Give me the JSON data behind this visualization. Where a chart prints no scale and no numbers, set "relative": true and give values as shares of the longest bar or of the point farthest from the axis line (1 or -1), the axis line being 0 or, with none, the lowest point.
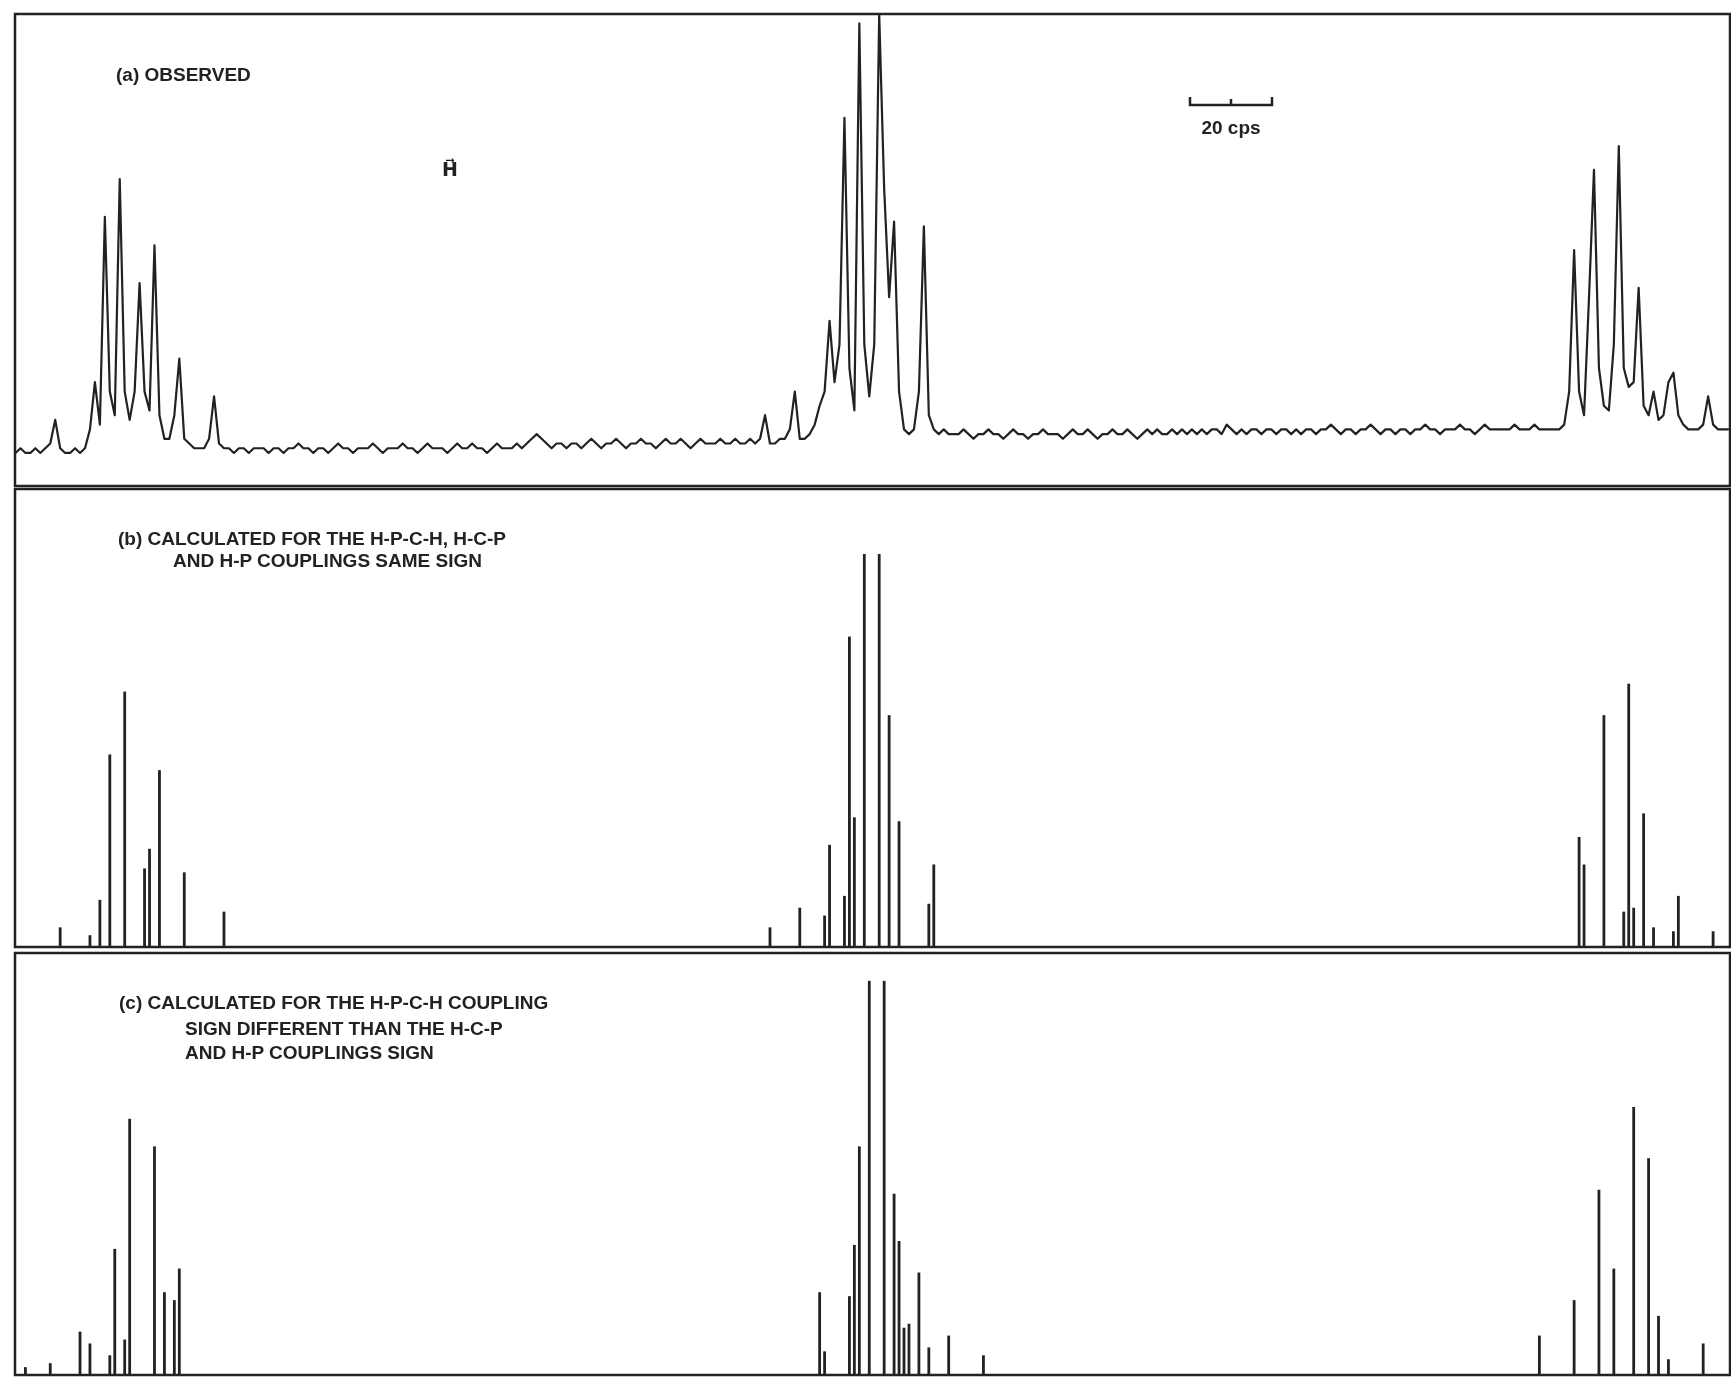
{
  "chart_data": [
    {
      "type": "line",
      "title": "(a) OBSERVED",
      "relative": true,
      "color": "#222222",
      "annotations": [
        "H⃗",
        "20 cps"
      ],
      "categories": [
        null,
        null,
        null,
        null,
        null,
        null,
        null,
        null,
        null,
        null,
        null,
        null,
        null,
        null,
        null,
        null,
        null,
        null,
        null,
        null,
        null,
        null,
        null,
        null,
        null,
        null,
        null,
        null,
        null,
        null,
        null,
        null,
        null,
        null,
        null,
        null,
        null,
        null,
        null,
        null,
        null,
        null,
        null,
        null,
        null,
        null,
        null,
        null,
        null,
        null,
        null,
        null,
        null,
        null,
        null,
        null,
        null,
        null,
        null,
        null,
        null,
        null,
        null,
        null,
        null,
        null,
        null,
        null,
        null,
        null,
        null,
        null,
        null,
        null,
        null,
        null,
        null,
        null,
        null,
        null,
        null,
        null,
        null,
        null,
        null,
        null,
        null,
        null,
        null,
        null,
        null,
        null,
        null,
        null,
        null,
        null,
        null,
        null,
        null,
        null,
        null,
        null,
        null,
        null,
        null,
        null,
        null,
        null,
        null,
        null,
        null,
        null,
        null,
        null,
        null,
        null,
        null,
        null,
        null,
        null,
        null,
        null,
        null,
        null,
        null,
        null,
        null,
        null,
        null,
        null,
        null,
        null,
        null,
        null,
        null,
        null,
        null,
        null,
        null,
        null,
        null,
        null,
        null,
        null,
        null,
        null,
        null,
        null,
        null,
        null,
        null,
        null,
        null,
        null,
        null,
        null,
        null,
        null,
        null,
        null,
        null,
        null,
        null,
        null,
        null,
        null,
        null,
        null,
        null,
        null,
        null,
        null,
        null,
        null,
        null,
        null,
        null,
        null,
        null,
        null,
        null,
        null,
        null,
        null,
        null,
        null,
        null,
        null,
        null,
        null,
        null,
        null,
        null,
        null,
        null,
        null,
        null,
        null,
        null,
        null,
        null,
        null,
        null,
        null,
        null,
        null,
        null,
        null,
        null,
        null,
        null,
        null,
        null,
        null,
        null,
        null,
        null,
        null,
        null,
        null,
        null,
        null,
        null,
        null,
        null,
        null,
        null,
        null,
        null,
        null,
        null,
        null,
        null,
        null,
        null,
        null,
        null,
        null,
        null,
        null,
        null,
        null,
        null,
        null,
        null,
        null,
        null,
        null,
        null,
        null,
        null,
        null,
        null,
        null,
        null,
        null,
        null,
        null,
        null,
        null,
        null,
        null,
        null,
        null,
        null,
        null,
        null,
        null,
        null,
        null,
        null,
        null,
        null,
        null,
        null,
        null,
        null,
        null,
        null,
        null,
        null,
        null,
        null,
        null,
        null,
        null,
        null,
        null,
        null,
        null,
        null,
        null,
        null,
        null,
        null,
        null,
        null,
        null,
        null,
        null,
        null,
        null,
        null,
        null,
        null,
        null,
        null,
        null,
        null,
        null,
        null,
        null,
        null,
        null,
        null,
        null,
        null,
        null,
        null,
        null,
        null,
        null,
        null,
        null,
        null,
        null,
        null,
        null,
        null,
        null,
        null,
        null,
        null,
        null,
        null,
        null,
        null,
        null,
        null,
        null,
        null,
        null,
        null,
        null,
        null,
        null
      ],
      "values": [
        0.07,
        0.08,
        0.07,
        0.07,
        0.08,
        0.07,
        0.08,
        0.09,
        0.14,
        0.08,
        0.07,
        0.07,
        0.08,
        0.07,
        0.08,
        0.12,
        0.22,
        0.13,
        0.57,
        0.2,
        0.15,
        0.65,
        0.2,
        0.14,
        0.2,
        0.43,
        0.2,
        0.16,
        0.51,
        0.15,
        0.1,
        0.1,
        0.15,
        0.27,
        0.1,
        0.09,
        0.08,
        0.08,
        0.08,
        0.1,
        0.19,
        0.09,
        0.08,
        0.08,
        0.07,
        0.08,
        0.08,
        0.07,
        0.08,
        0.08,
        0.08,
        0.07,
        0.08,
        0.08,
        0.07,
        0.08,
        0.08,
        0.09,
        0.08,
        0.08,
        0.07,
        0.08,
        0.08,
        0.07,
        0.08,
        0.09,
        0.08,
        0.08,
        0.07,
        0.08,
        0.08,
        0.08,
        0.09,
        0.08,
        0.07,
        0.08,
        0.08,
        0.08,
        0.09,
        0.08,
        0.08,
        0.07,
        0.08,
        0.09,
        0.08,
        0.08,
        0.08,
        0.07,
        0.08,
        0.09,
        0.08,
        0.08,
        0.09,
        0.08,
        0.08,
        0.07,
        0.08,
        0.09,
        0.08,
        0.08,
        0.08,
        0.09,
        0.08,
        0.09,
        0.1,
        0.11,
        0.1,
        0.09,
        0.08,
        0.09,
        0.09,
        0.08,
        0.09,
        0.09,
        0.08,
        0.09,
        0.1,
        0.09,
        0.08,
        0.09,
        0.09,
        0.1,
        0.09,
        0.08,
        0.09,
        0.09,
        0.1,
        0.09,
        0.09,
        0.08,
        0.09,
        0.1,
        0.09,
        0.09,
        0.1,
        0.09,
        0.08,
        0.09,
        0.1,
        0.09,
        0.09,
        0.09,
        0.1,
        0.09,
        0.09,
        0.1,
        0.09,
        0.09,
        0.1,
        0.09,
        0.1,
        0.15,
        0.09,
        0.09,
        0.1,
        0.1,
        0.12,
        0.2,
        0.1,
        0.1,
        0.11,
        0.13,
        0.17,
        0.2,
        0.35,
        0.22,
        0.3,
        0.78,
        0.25,
        0.16,
        0.98,
        0.3,
        0.19,
        0.3,
        1,
        0.63,
        0.4,
        0.56,
        0.2,
        0.12,
        0.11,
        0.12,
        0.2,
        0.55,
        0.15,
        0.12,
        0.11,
        0.12,
        0.11,
        0.11,
        0.11,
        0.12,
        0.11,
        0.1,
        0.11,
        0.11,
        0.12,
        0.11,
        0.11,
        0.1,
        0.11,
        0.12,
        0.11,
        0.11,
        0.1,
        0.11,
        0.11,
        0.12,
        0.11,
        0.11,
        0.11,
        0.1,
        0.11,
        0.12,
        0.11,
        0.11,
        0.12,
        0.11,
        0.1,
        0.11,
        0.11,
        0.12,
        0.11,
        0.11,
        0.12,
        0.11,
        0.1,
        0.11,
        0.12,
        0.11,
        0.12,
        0.11,
        0.11,
        0.12,
        0.11,
        0.12,
        0.11,
        0.12,
        0.11,
        0.12,
        0.11,
        0.12,
        0.12,
        0.11,
        0.13,
        0.12,
        0.11,
        0.12,
        0.11,
        0.12,
        0.12,
        0.11,
        0.12,
        0.12,
        0.11,
        0.12,
        0.12,
        0.11,
        0.12,
        0.11,
        0.12,
        0.12,
        0.11,
        0.12,
        0.12,
        0.13,
        0.12,
        0.11,
        0.12,
        0.12,
        0.11,
        0.12,
        0.12,
        0.13,
        0.12,
        0.11,
        0.12,
        0.12,
        0.11,
        0.12,
        0.12,
        0.11,
        0.12,
        0.12,
        0.13,
        0.12,
        0.12,
        0.11,
        0.12,
        0.12,
        0.12,
        0.13,
        0.12,
        0.12,
        0.11,
        0.12,
        0.13,
        0.12,
        0.12,
        0.12,
        0.12,
        0.12,
        0.13,
        0.12,
        0.12,
        0.12,
        0.13,
        0.12,
        0.12,
        0.12,
        0.12,
        0.12,
        0.13,
        0.2,
        0.5,
        0.2,
        0.15,
        0.4,
        0.67,
        0.25,
        0.17,
        0.16,
        0.3,
        0.72,
        0.25,
        0.21,
        0.22,
        0.42,
        0.17,
        0.15,
        0.2,
        0.14,
        0.15,
        0.22,
        0.24,
        0.15,
        0.13,
        0.12,
        0.12,
        0.12,
        0.13,
        0.19,
        0.13,
        0.12,
        0.12,
        0.12
      ]
    },
    {
      "type": "bar",
      "title": "(b) CALCULATED FOR THE H-P-C-H, H-C-P\nAND H-P COUPLINGS SAME SIGN",
      "relative": true,
      "color": "#222222",
      "categories": [
        null,
        null,
        null,
        null,
        null,
        null,
        null,
        null,
        null,
        null,
        null,
        null,
        null,
        null,
        null,
        null,
        null,
        null,
        null,
        null,
        null,
        null,
        null,
        null,
        null,
        null,
        null,
        null,
        null,
        null,
        null,
        null,
        null,
        null,
        null,
        null,
        null,
        null,
        null,
        null,
        null,
        null,
        null,
        null,
        null,
        null,
        null,
        null,
        null,
        null,
        null,
        null,
        null,
        null,
        null,
        null,
        null,
        null,
        null,
        null,
        null,
        null,
        null,
        null,
        null,
        null,
        null,
        null,
        null,
        null,
        null,
        null,
        null,
        null,
        null,
        null,
        null,
        null,
        null,
        null,
        null,
        null,
        null,
        null,
        null,
        null,
        null,
        null,
        null,
        null,
        null,
        null,
        null,
        null,
        null,
        null,
        null,
        null,
        null,
        null,
        null,
        null,
        null,
        null,
        null,
        null,
        null,
        null,
        null,
        null,
        null,
        null,
        null,
        null,
        null,
        null,
        null,
        null,
        null,
        null,
        null,
        null,
        null,
        null,
        null,
        null,
        null,
        null,
        null,
        null,
        null,
        null,
        null,
        null,
        null,
        null,
        null,
        null,
        null,
        null,
        null,
        null,
        null,
        null,
        null,
        null,
        null,
        null,
        null,
        null,
        null,
        null,
        null,
        null,
        null,
        null,
        null,
        null,
        null,
        null,
        null,
        null,
        null,
        null,
        null,
        null,
        null,
        null,
        null,
        null,
        null,
        null,
        null,
        null,
        null,
        null,
        null,
        null,
        null,
        null,
        null,
        null,
        null,
        null,
        null,
        null,
        null,
        null,
        null,
        null,
        null,
        null,
        null,
        null,
        null,
        null,
        null,
        null,
        null,
        null,
        null,
        null,
        null,
        null,
        null,
        null,
        null,
        null,
        null,
        null,
        null,
        null,
        null,
        null,
        null,
        null,
        null,
        null,
        null,
        null,
        null,
        null,
        null,
        null,
        null,
        null,
        null,
        null,
        null,
        null,
        null,
        null,
        null,
        null,
        null,
        null,
        null,
        null,
        null,
        null,
        null,
        null,
        null,
        null,
        null,
        null,
        null,
        null,
        null,
        null,
        null,
        null,
        null,
        null,
        null,
        null,
        null,
        null,
        null,
        null,
        null,
        null,
        null,
        null,
        null,
        null,
        null,
        null,
        null,
        null,
        null,
        null,
        null,
        null,
        null,
        null,
        null,
        null,
        null,
        null,
        null,
        null,
        null,
        null,
        null,
        null,
        null,
        null,
        null,
        null,
        null,
        null,
        null,
        null,
        null,
        null,
        null,
        null,
        null,
        null,
        null,
        null,
        null,
        null,
        null,
        null,
        null,
        null,
        null,
        null,
        null,
        null,
        null,
        null,
        null,
        null,
        null,
        null,
        null,
        null,
        null,
        null,
        null,
        null,
        null,
        null,
        null,
        null,
        null,
        null,
        null,
        null,
        null,
        null,
        null,
        null,
        null,
        null,
        null,
        null,
        null,
        null,
        null,
        null,
        null,
        null
      ],
      "values": [
        null,
        null,
        null,
        null,
        null,
        null,
        null,
        null,
        null,
        0.05,
        null,
        null,
        null,
        null,
        null,
        0.03,
        null,
        0.12,
        null,
        0.49,
        null,
        null,
        0.65,
        null,
        null,
        null,
        0.2,
        0.25,
        null,
        0.45,
        null,
        null,
        null,
        null,
        0.19,
        null,
        null,
        null,
        null,
        null,
        null,
        null,
        0.09,
        null,
        null,
        null,
        null,
        null,
        null,
        null,
        null,
        null,
        null,
        null,
        null,
        null,
        null,
        null,
        null,
        null,
        null,
        null,
        null,
        null,
        null,
        null,
        null,
        null,
        null,
        null,
        null,
        null,
        null,
        null,
        null,
        null,
        null,
        null,
        null,
        null,
        null,
        null,
        null,
        null,
        null,
        null,
        null,
        null,
        null,
        null,
        null,
        null,
        null,
        null,
        null,
        null,
        null,
        null,
        null,
        null,
        null,
        null,
        null,
        null,
        null,
        null,
        null,
        null,
        null,
        null,
        null,
        null,
        null,
        null,
        null,
        null,
        null,
        null,
        null,
        null,
        null,
        null,
        null,
        null,
        null,
        null,
        null,
        null,
        null,
        null,
        null,
        null,
        null,
        null,
        null,
        null,
        null,
        null,
        null,
        null,
        null,
        null,
        null,
        null,
        null,
        null,
        null,
        null,
        null,
        null,
        null,
        null,
        0.05,
        null,
        null,
        null,
        null,
        null,
        0.1,
        null,
        null,
        null,
        null,
        0.08,
        0.26,
        null,
        null,
        0.13,
        0.79,
        0.33,
        null,
        1,
        null,
        null,
        1,
        null,
        0.59,
        null,
        0.32,
        null,
        null,
        null,
        null,
        null,
        0.11,
        0.21,
        null,
        null,
        null,
        null,
        null,
        null,
        null,
        null,
        null,
        null,
        null,
        null,
        null,
        null,
        null,
        null,
        null,
        null,
        null,
        null,
        null,
        null,
        null,
        null,
        null,
        null,
        null,
        null,
        null,
        null,
        null,
        null,
        null,
        null,
        null,
        null,
        null,
        null,
        null,
        null,
        null,
        null,
        null,
        null,
        null,
        null,
        null,
        null,
        null,
        null,
        null,
        null,
        null,
        null,
        null,
        null,
        null,
        null,
        null,
        null,
        null,
        null,
        null,
        null,
        null,
        null,
        null,
        null,
        null,
        null,
        null,
        null,
        null,
        null,
        null,
        null,
        null,
        null,
        null,
        null,
        null,
        null,
        null,
        null,
        null,
        null,
        null,
        null,
        null,
        null,
        null,
        null,
        null,
        null,
        null,
        null,
        null,
        null,
        null,
        null,
        null,
        null,
        null,
        null,
        null,
        null,
        null,
        null,
        null,
        null,
        null,
        null,
        null,
        null,
        null,
        null,
        null,
        null,
        null,
        null,
        null,
        null,
        null,
        null,
        null,
        null,
        null,
        null,
        null,
        0.28,
        0.21,
        null,
        null,
        null,
        0.59,
        null,
        null,
        null,
        0.09,
        0.67,
        0.1,
        null,
        0.34,
        null,
        0.05,
        null,
        null,
        null,
        0.04,
        0.13,
        null,
        null,
        null,
        null,
        null,
        null,
        0.04,
        null,
        null,
        null
      ]
    },
    {
      "type": "bar",
      "title": "(c) CALCULATED FOR THE H-P-C-H COUPLING\nSIGN DIFFERENT THAN THE H-C-P\nAND H-P COUPLINGS SIGN",
      "relative": true,
      "color": "#222222",
      "categories": [
        null,
        null,
        null,
        null,
        null,
        null,
        null,
        null,
        null,
        null,
        null,
        null,
        null,
        null,
        null,
        null,
        null,
        null,
        null,
        null,
        null,
        null,
        null,
        null,
        null,
        null,
        null,
        null,
        null,
        null,
        null,
        null,
        null,
        null,
        null,
        null,
        null,
        null,
        null,
        null,
        null,
        null,
        null,
        null,
        null,
        null,
        null,
        null,
        null,
        null,
        null,
        null,
        null,
        null,
        null,
        null,
        null,
        null,
        null,
        null,
        null,
        null,
        null,
        null,
        null,
        null,
        null,
        null,
        null,
        null,
        null,
        null,
        null,
        null,
        null,
        null,
        null,
        null,
        null,
        null,
        null,
        null,
        null,
        null,
        null,
        null,
        null,
        null,
        null,
        null,
        null,
        null,
        null,
        null,
        null,
        null,
        null,
        null,
        null,
        null,
        null,
        null,
        null,
        null,
        null,
        null,
        null,
        null,
        null,
        null,
        null,
        null,
        null,
        null,
        null,
        null,
        null,
        null,
        null,
        null,
        null,
        null,
        null,
        null,
        null,
        null,
        null,
        null,
        null,
        null,
        null,
        null,
        null,
        null,
        null,
        null,
        null,
        null,
        null,
        null,
        null,
        null,
        null,
        null,
        null,
        null,
        null,
        null,
        null,
        null,
        null,
        null,
        null,
        null,
        null,
        null,
        null,
        null,
        null,
        null,
        null,
        null,
        null,
        null,
        null,
        null,
        null,
        null,
        null,
        null,
        null,
        null,
        null,
        null,
        null,
        null,
        null,
        null,
        null,
        null,
        null,
        null,
        null,
        null,
        null,
        null,
        null,
        null,
        null,
        null,
        null,
        null,
        null,
        null,
        null,
        null,
        null,
        null,
        null,
        null,
        null,
        null,
        null,
        null,
        null,
        null,
        null,
        null,
        null,
        null,
        null,
        null,
        null,
        null,
        null,
        null,
        null,
        null,
        null,
        null,
        null,
        null,
        null,
        null,
        null,
        null,
        null,
        null,
        null,
        null,
        null,
        null,
        null,
        null,
        null,
        null,
        null,
        null,
        null,
        null,
        null,
        null,
        null,
        null,
        null,
        null,
        null,
        null,
        null,
        null,
        null,
        null,
        null,
        null,
        null,
        null,
        null,
        null,
        null,
        null,
        null,
        null,
        null,
        null,
        null,
        null,
        null,
        null,
        null,
        null,
        null,
        null,
        null,
        null,
        null,
        null,
        null,
        null,
        null,
        null,
        null,
        null,
        null,
        null,
        null,
        null,
        null,
        null,
        null,
        null,
        null,
        null,
        null,
        null,
        null,
        null,
        null,
        null,
        null,
        null,
        null,
        null,
        null,
        null,
        null,
        null,
        null,
        null,
        null,
        null,
        null,
        null,
        null,
        null,
        null,
        null,
        null,
        null,
        null,
        null,
        null,
        null,
        null,
        null,
        null,
        null,
        null,
        null,
        null,
        null,
        null,
        null,
        null,
        null,
        null,
        null,
        null,
        null,
        null,
        null,
        null,
        null,
        null,
        null,
        null,
        null
      ],
      "values": [
        null,
        null,
        0.02,
        null,
        null,
        null,
        null,
        0.03,
        null,
        null,
        null,
        null,
        null,
        0.11,
        null,
        0.08,
        null,
        null,
        null,
        0.05,
        0.32,
        null,
        0.09,
        0.65,
        null,
        null,
        null,
        null,
        0.58,
        null,
        0.21,
        null,
        0.19,
        0.27,
        null,
        null,
        null,
        null,
        null,
        null,
        null,
        null,
        null,
        null,
        null,
        null,
        null,
        null,
        null,
        null,
        null,
        null,
        null,
        null,
        null,
        null,
        null,
        null,
        null,
        null,
        null,
        null,
        null,
        null,
        null,
        null,
        null,
        null,
        null,
        null,
        null,
        null,
        null,
        null,
        null,
        null,
        null,
        null,
        null,
        null,
        null,
        null,
        null,
        null,
        null,
        null,
        null,
        null,
        null,
        null,
        null,
        null,
        null,
        null,
        null,
        null,
        null,
        null,
        null,
        null,
        null,
        null,
        null,
        null,
        null,
        null,
        null,
        null,
        null,
        null,
        null,
        null,
        null,
        null,
        null,
        null,
        null,
        null,
        null,
        null,
        null,
        null,
        null,
        null,
        null,
        null,
        null,
        null,
        null,
        null,
        null,
        null,
        null,
        null,
        null,
        null,
        null,
        null,
        null,
        null,
        null,
        null,
        null,
        null,
        null,
        null,
        null,
        null,
        null,
        null,
        null,
        null,
        null,
        null,
        null,
        null,
        null,
        null,
        null,
        null,
        null,
        null,
        0.21,
        0.06,
        null,
        null,
        null,
        null,
        0.2,
        0.33,
        0.58,
        null,
        1,
        null,
        null,
        1,
        null,
        0.46,
        0.34,
        0.12,
        0.13,
        null,
        0.26,
        null,
        0.07,
        null,
        null,
        null,
        0.1,
        null,
        null,
        null,
        null,
        null,
        null,
        0.05,
        null,
        null,
        null,
        null,
        null,
        null,
        null,
        null,
        null,
        null,
        null,
        null,
        null,
        null,
        null,
        null,
        null,
        null,
        null,
        null,
        null,
        null,
        null,
        null,
        null,
        null,
        null,
        null,
        null,
        null,
        null,
        null,
        null,
        null,
        null,
        null,
        null,
        null,
        null,
        null,
        null,
        null,
        null,
        null,
        null,
        null,
        null,
        null,
        null,
        null,
        null,
        null,
        null,
        null,
        null,
        null,
        null,
        null,
        null,
        null,
        null,
        null,
        null,
        null,
        null,
        null,
        null,
        null,
        null,
        null,
        null,
        null,
        null,
        null,
        null,
        null,
        null,
        null,
        null,
        null,
        null,
        null,
        null,
        null,
        null,
        null,
        null,
        null,
        null,
        null,
        null,
        null,
        null,
        null,
        null,
        null,
        null,
        null,
        null,
        null,
        null,
        null,
        null,
        null,
        null,
        null,
        null,
        null,
        null,
        null,
        null,
        0.1,
        null,
        null,
        null,
        null,
        null,
        null,
        0.19,
        null,
        null,
        null,
        null,
        0.47,
        null,
        null,
        0.27,
        null,
        null,
        null,
        0.68,
        null,
        null,
        0.55,
        null,
        0.15,
        null,
        0.04,
        null,
        null,
        null,
        null,
        null,
        null,
        0.08,
        null,
        null,
        null,
        null,
        null
      ]
    }
  ]
}
